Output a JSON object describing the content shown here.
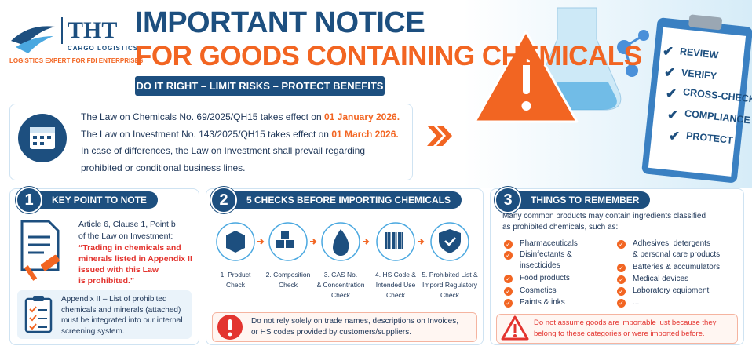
{
  "brand": {
    "logo": "THT",
    "subtitle": "CARGO LOGISTICS",
    "tagline": "LOGISTICS EXPERT FOR FDI ENTERPRISES"
  },
  "header": {
    "title_line1": "IMPORTANT NOTICE",
    "title_line2": "FOR GOODS CONTAINING CHEMICALS",
    "banner": "DO IT RIGHT – LIMIT RISKS – PROTECT BENEFITS"
  },
  "notice": {
    "line1": {
      "text": "The Law on Chemicals No. 69/2025/QH15 takes effect on ",
      "date": "01 January 2026."
    },
    "line2": {
      "text": "The Law on Investment No. 143/2025/QH15 takes effect on ",
      "date": "01 March 2026."
    },
    "line3": "In case of differences, the Law on Investment shall prevail regarding",
    "line4": "prohibited or conditional business lines."
  },
  "checklist": [
    "REVIEW",
    "VERIFY",
    "CROSS-CHECK",
    "COMPLIANCE",
    "PROTECT"
  ],
  "section1": {
    "number": "1",
    "title": "KEY POINT TO NOTE",
    "lines": [
      "Article 6, Clause 1, Point b",
      "of the Law on Investment:"
    ],
    "quote": [
      "“Trading in chemicals and",
      "minerals listed in Appendix II",
      "issued with this Law",
      "is prohibited.”"
    ],
    "appendix": [
      "Appendix II – List of prohibited",
      "chemicals and minerals (attached)",
      "must be integrated into our internal",
      "screening system."
    ]
  },
  "section2": {
    "number": "2",
    "title": "5 CHECKS BEFORE IMPORTING CHEMICALS",
    "steps": [
      [
        "1. Product",
        "Check"
      ],
      [
        "2. Composition",
        "Check"
      ],
      [
        "3. CAS No.",
        "& Concentration",
        "Check"
      ],
      [
        "4. HS Code &",
        "Intended Use",
        "Check"
      ],
      [
        "5. Prohibited List &",
        "Impord Regulatory",
        "Check"
      ]
    ],
    "warning": [
      "Do not rely solely on trade names, descriptions on Invoices,",
      "or HS codes provided by customers/suppliers."
    ]
  },
  "section3": {
    "number": "3",
    "title": "THINGS TO REMEMBER",
    "intro": [
      "Many common products may contain ingredients classified",
      "as prohibited chemicals, such as:"
    ],
    "items_left": [
      [
        "Pharmaceuticals"
      ],
      [
        "Disinfectants &",
        "insecticides"
      ],
      [
        "Food products"
      ],
      [
        "Cosmetics"
      ],
      [
        "Paints & inks"
      ]
    ],
    "items_right": [
      [
        "Adhesives, detergents",
        "& personal care products"
      ],
      [
        "Batteries & accumulators"
      ],
      [
        "Medical devices"
      ],
      [
        "Laboratory equipment"
      ],
      [
        "..."
      ]
    ],
    "warning": [
      "Do not assume goods are importable just because they",
      "belong to these categories or were imported before."
    ]
  }
}
